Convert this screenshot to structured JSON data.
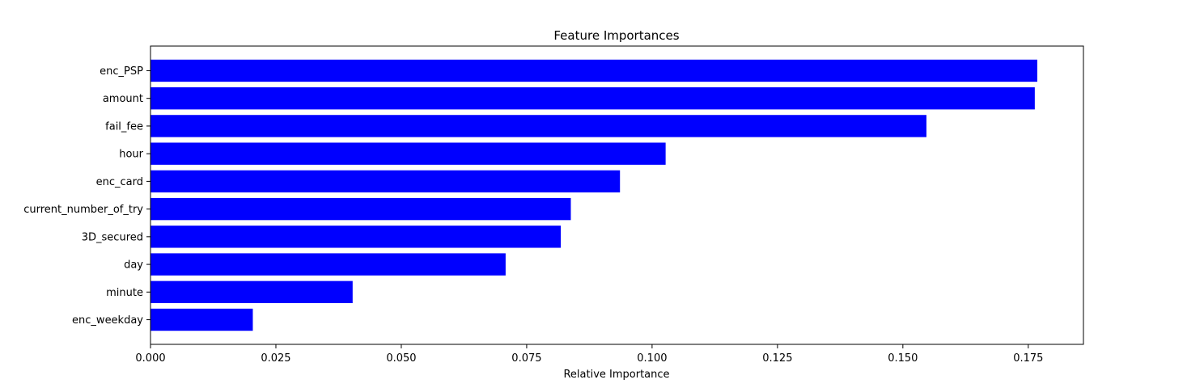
{
  "chart_data": {
    "type": "bar",
    "orientation": "horizontal",
    "title": "Feature Importances",
    "xlabel": "Relative Importance",
    "ylabel": "",
    "xlim": [
      0,
      0.186
    ],
    "x_ticks": [
      "0.000",
      "0.025",
      "0.050",
      "0.075",
      "0.100",
      "0.125",
      "0.150",
      "0.175"
    ],
    "categories": [
      "enc_weekday",
      "minute",
      "day",
      "3D_secured",
      "current_number_of_try",
      "enc_card",
      "hour",
      "fail_fee",
      "amount",
      "enc_PSP"
    ],
    "values": [
      0.0204,
      0.0403,
      0.0708,
      0.0818,
      0.0838,
      0.0936,
      0.1027,
      0.1547,
      0.1763,
      0.1768
    ],
    "bar_color": "#0000ff",
    "grid": false,
    "legend": "none"
  }
}
